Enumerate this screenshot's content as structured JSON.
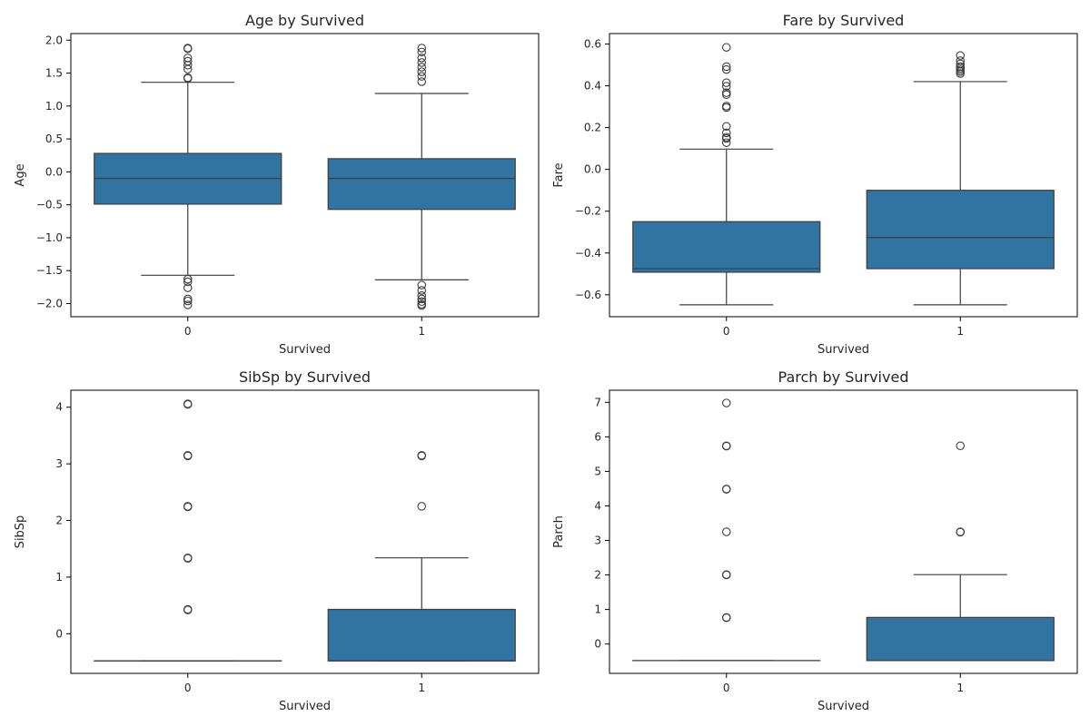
{
  "chart_data": [
    {
      "type": "box",
      "title": "Age by Survived",
      "xlabel": "Survived",
      "ylabel": "Age",
      "ylim": [
        -2.2,
        2.1
      ],
      "yticks": [
        -2.0,
        -1.5,
        -1.0,
        -0.5,
        0.0,
        0.5,
        1.0,
        1.5,
        2.0
      ],
      "ytick_labels": [
        "−2.0",
        "−1.5",
        "−1.0",
        "−0.5",
        "0.0",
        "0.5",
        "1.0",
        "1.5",
        "2.0"
      ],
      "categories": [
        "0",
        "1"
      ],
      "boxes": [
        {
          "category": "0",
          "whisker_low": -1.57,
          "q1": -0.49,
          "median": -0.1,
          "q3": 0.28,
          "whisker_high": 1.36,
          "outliers": [
            1.88,
            1.87,
            1.73,
            1.68,
            1.62,
            1.56,
            1.43,
            1.42,
            -1.63,
            -1.67,
            -1.76,
            -1.93,
            -1.96,
            -2.02
          ]
        },
        {
          "category": "1",
          "whisker_low": -1.64,
          "q1": -0.57,
          "median": -0.1,
          "q3": 0.2,
          "whisker_high": 1.19,
          "outliers": [
            1.88,
            1.82,
            1.73,
            1.66,
            1.59,
            1.52,
            1.45,
            1.37,
            -1.72,
            -1.8,
            -1.88,
            -1.93,
            -1.97,
            -2.01,
            -2.03
          ]
        }
      ]
    },
    {
      "type": "box",
      "title": "Fare by Survived",
      "xlabel": "Survived",
      "ylabel": "Fare",
      "ylim": [
        -0.705,
        0.65
      ],
      "yticks": [
        -0.6,
        -0.4,
        -0.2,
        0.0,
        0.2,
        0.4,
        0.6
      ],
      "ytick_labels": [
        "−0.6",
        "−0.4",
        "−0.2",
        "0.0",
        "0.2",
        "0.4",
        "0.6"
      ],
      "categories": [
        "0",
        "1"
      ],
      "boxes": [
        {
          "category": "0",
          "whisker_low": -0.648,
          "q1": -0.492,
          "median": -0.475,
          "q3": -0.25,
          "whisker_high": 0.097,
          "outliers": [
            0.584,
            0.492,
            0.478,
            0.415,
            0.398,
            0.367,
            0.358,
            0.303,
            0.296,
            0.206,
            0.175,
            0.154,
            0.148,
            0.128
          ]
        },
        {
          "category": "1",
          "whisker_low": -0.648,
          "q1": -0.475,
          "median": -0.326,
          "q3": -0.1,
          "whisker_high": 0.42,
          "outliers": [
            0.545,
            0.52,
            0.505,
            0.492,
            0.484,
            0.476,
            0.468,
            0.459
          ]
        }
      ]
    },
    {
      "type": "box",
      "title": "SibSp by Survived",
      "xlabel": "Survived",
      "ylabel": "SibSp",
      "ylim": [
        -0.7,
        4.3
      ],
      "yticks": [
        0,
        1,
        2,
        3,
        4
      ],
      "ytick_labels": [
        "0",
        "1",
        "2",
        "3",
        "4"
      ],
      "categories": [
        "0",
        "1"
      ],
      "boxes": [
        {
          "category": "0",
          "whisker_low": -0.48,
          "q1": -0.48,
          "median": -0.48,
          "q3": -0.48,
          "whisker_high": -0.48,
          "outliers": [
            4.06,
            4.05,
            3.15,
            3.14,
            2.25,
            2.24,
            1.34,
            1.33,
            0.43,
            0.42
          ]
        },
        {
          "category": "1",
          "whisker_low": -0.48,
          "q1": -0.48,
          "median": -0.48,
          "q3": 0.43,
          "whisker_high": 1.34,
          "outliers": [
            3.15,
            3.14,
            2.25
          ]
        }
      ]
    },
    {
      "type": "box",
      "title": "Parch by Survived",
      "xlabel": "Survived",
      "ylabel": "Parch",
      "ylim": [
        -0.85,
        7.35
      ],
      "yticks": [
        0,
        1,
        2,
        3,
        4,
        5,
        6,
        7
      ],
      "ytick_labels": [
        "0",
        "1",
        "2",
        "3",
        "4",
        "5",
        "6",
        "7"
      ],
      "categories": [
        "0",
        "1"
      ],
      "boxes": [
        {
          "category": "0",
          "whisker_low": -0.48,
          "q1": -0.48,
          "median": -0.48,
          "q3": -0.48,
          "whisker_high": -0.48,
          "outliers": [
            6.98,
            5.74,
            5.73,
            4.49,
            4.48,
            3.25,
            2.01,
            2.0,
            0.77,
            0.76
          ]
        },
        {
          "category": "1",
          "whisker_low": -0.48,
          "q1": -0.48,
          "median": -0.48,
          "q3": 0.77,
          "whisker_high": 2.01,
          "outliers": [
            5.74,
            3.25,
            3.24
          ]
        }
      ]
    }
  ],
  "colors": {
    "box_fill": "#3274a1",
    "line": "#3d3d3d",
    "axis": "#000000"
  }
}
